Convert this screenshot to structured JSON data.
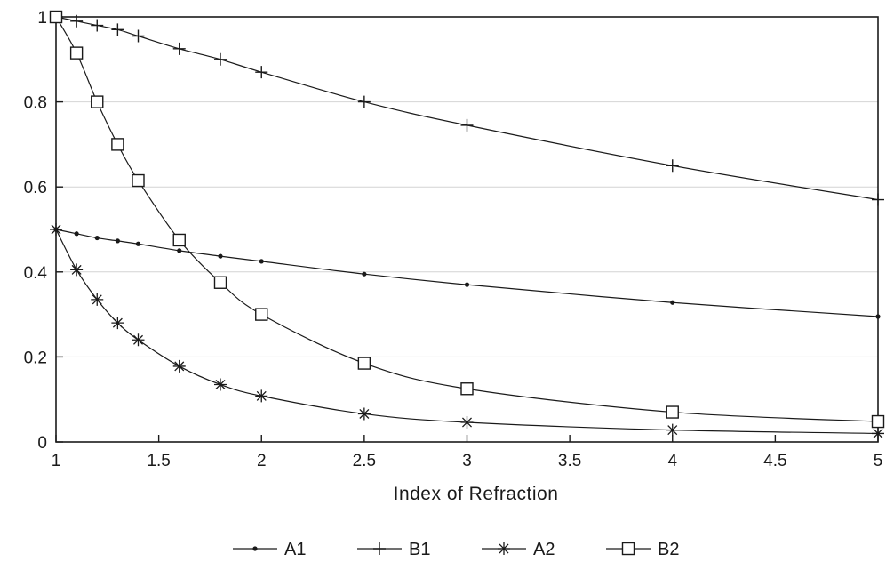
{
  "chart_data": {
    "type": "line",
    "title": "",
    "xlabel": "Index of Refraction",
    "ylabel": "",
    "xlim": [
      1,
      5
    ],
    "ylim": [
      0,
      1
    ],
    "grid": "horizontal",
    "legend_position": "bottom-center",
    "x_ticks": [
      "1",
      "1.5",
      "2",
      "2.5",
      "3",
      "3.5",
      "4",
      "4.5",
      "5"
    ],
    "y_ticks": [
      "0",
      "0.2",
      "0.4",
      "0.6",
      "0.8",
      "1"
    ],
    "series": [
      {
        "name": "A1",
        "marker": "dot",
        "color": "#1a1a1a",
        "x": [
          1,
          1.1,
          1.2,
          1.3,
          1.4,
          1.6,
          1.8,
          2,
          2.5,
          3,
          4,
          5
        ],
        "y": [
          0.5,
          0.49,
          0.48,
          0.473,
          0.466,
          0.45,
          0.437,
          0.425,
          0.395,
          0.37,
          0.328,
          0.295
        ]
      },
      {
        "name": "B1",
        "marker": "plus",
        "color": "#1a1a1a",
        "x": [
          1,
          1.1,
          1.2,
          1.3,
          1.4,
          1.6,
          1.8,
          2,
          2.5,
          3,
          4,
          5
        ],
        "y": [
          1.0,
          0.99,
          0.98,
          0.97,
          0.955,
          0.925,
          0.9,
          0.87,
          0.8,
          0.745,
          0.65,
          0.57
        ]
      },
      {
        "name": "A2",
        "marker": "asterisk",
        "color": "#1a1a1a",
        "x": [
          1,
          1.1,
          1.2,
          1.3,
          1.4,
          1.6,
          1.8,
          2,
          2.5,
          3,
          4,
          5
        ],
        "y": [
          0.5,
          0.405,
          0.335,
          0.28,
          0.24,
          0.178,
          0.135,
          0.108,
          0.066,
          0.046,
          0.028,
          0.02
        ]
      },
      {
        "name": "B2",
        "marker": "square",
        "color": "#1a1a1a",
        "x": [
          1,
          1.1,
          1.2,
          1.3,
          1.4,
          1.6,
          1.8,
          2,
          2.5,
          3,
          4,
          5
        ],
        "y": [
          1.0,
          0.915,
          0.8,
          0.7,
          0.615,
          0.475,
          0.375,
          0.3,
          0.185,
          0.125,
          0.07,
          0.048
        ]
      }
    ]
  }
}
